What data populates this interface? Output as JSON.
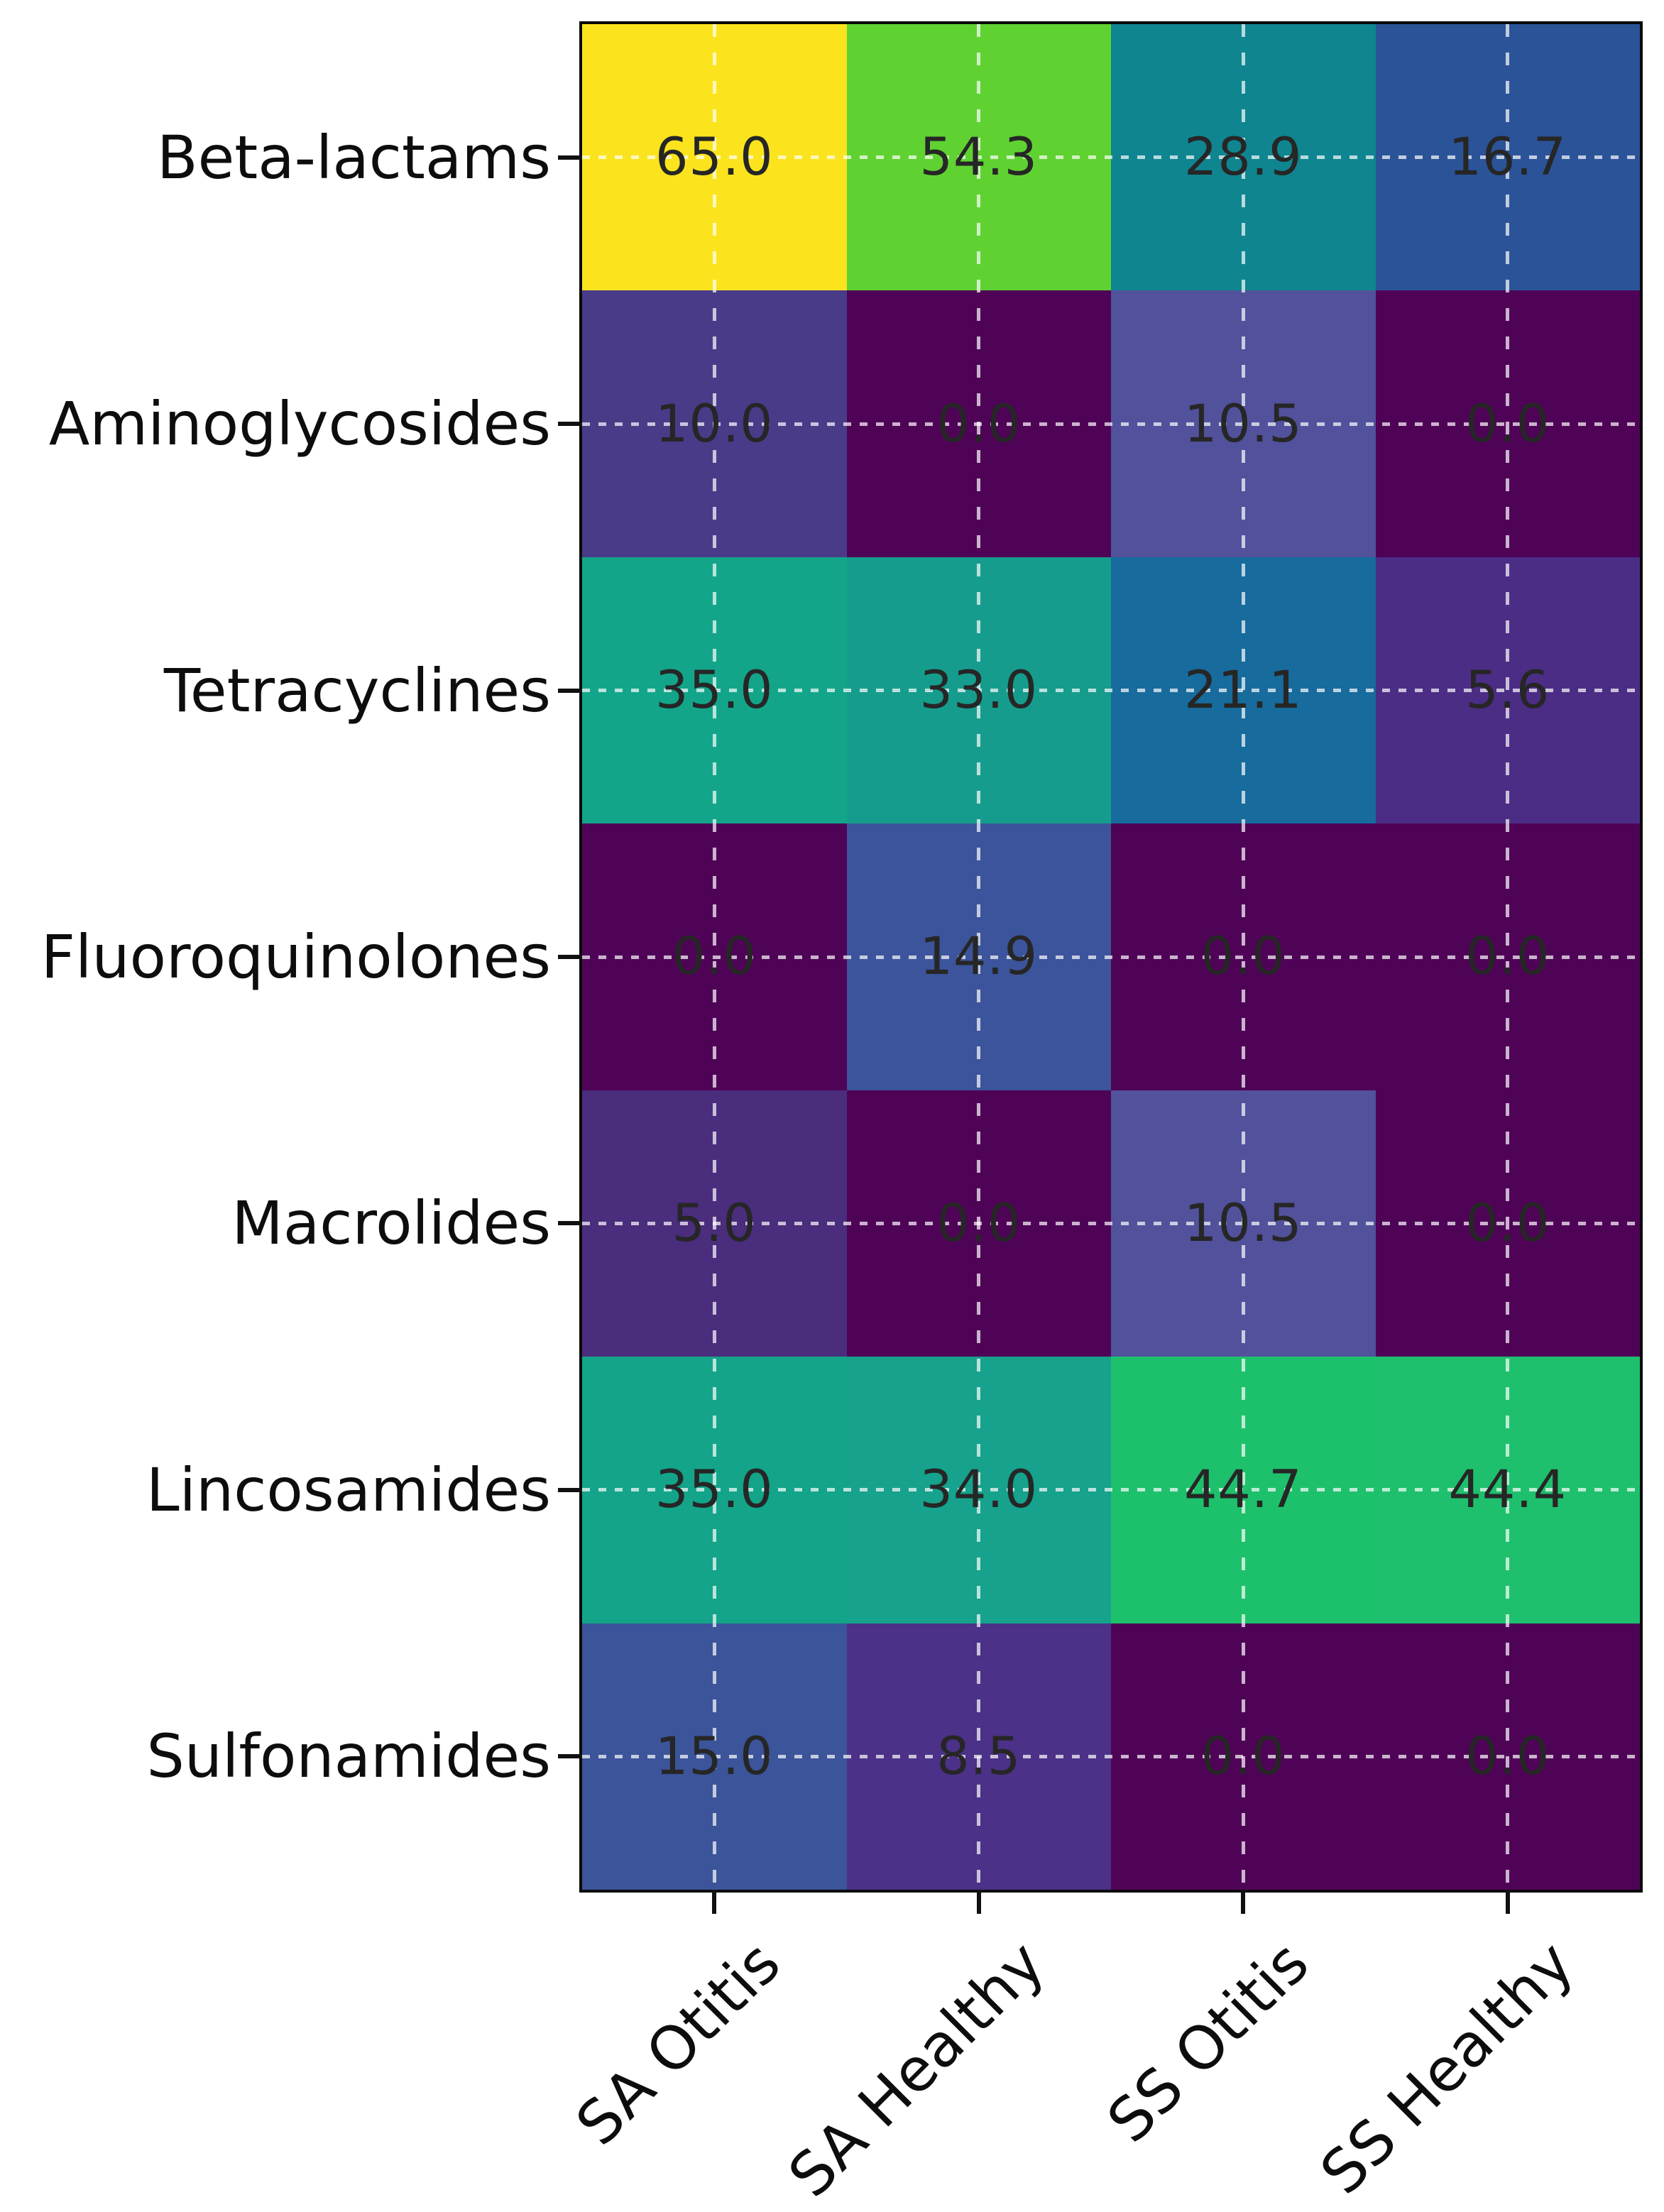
{
  "figure": {
    "background": "#ffffff",
    "title": ""
  },
  "chart_data": {
    "type": "heatmap",
    "title": "",
    "xlabel": "",
    "ylabel": "",
    "rows": [
      "Beta-lactams",
      "Aminoglycosides",
      "Tetracyclines",
      "Fluoroquinolones",
      "Macrolides",
      "Lincosamides",
      "Sulfonamides"
    ],
    "columns": [
      "SA Otitis",
      "SA Healthy",
      "SS Otitis",
      "SS Healthy"
    ],
    "values": [
      [
        65.0,
        54.3,
        28.9,
        16.7
      ],
      [
        10.0,
        0.0,
        10.5,
        0.0
      ],
      [
        35.0,
        33.0,
        21.1,
        5.6
      ],
      [
        0.0,
        14.9,
        0.0,
        0.0
      ],
      [
        5.0,
        0.0,
        10.5,
        0.0
      ],
      [
        35.0,
        34.0,
        44.7,
        44.4
      ],
      [
        15.0,
        8.5,
        0.0,
        0.0
      ]
    ],
    "value_labels": [
      [
        "65.0",
        "54.3",
        "28.9",
        "16.7"
      ],
      [
        "10.0",
        "0.0",
        "10.5",
        "0.0"
      ],
      [
        "35.0",
        "33.0",
        "21.1",
        "5.6"
      ],
      [
        "0.0",
        "14.9",
        "0.0",
        "0.0"
      ],
      [
        "5.0",
        "0.0",
        "10.5",
        "0.0"
      ],
      [
        "35.0",
        "34.0",
        "44.7",
        "44.4"
      ],
      [
        "15.0",
        "8.5",
        "0.0",
        "0.0"
      ]
    ],
    "cell_colors": [
      [
        "#fbe41e",
        "#5fd232",
        "#0f8590",
        "#2b5398"
      ],
      [
        "#4a3b89",
        "#4f0357",
        "#52519c",
        "#4f0357"
      ],
      [
        "#13a58a",
        "#169c8d",
        "#176b9d",
        "#4c2d85"
      ],
      [
        "#4f0357",
        "#3c549b",
        "#4f0357",
        "#4f0357"
      ],
      [
        "#4a2d7d",
        "#4f0357",
        "#52519c",
        "#4f0357"
      ],
      [
        "#13a489",
        "#16a28c",
        "#1dc16c",
        "#1ec06d"
      ],
      [
        "#3b549a",
        "#4b3187",
        "#4f0357",
        "#4f0357"
      ]
    ],
    "colormap": "viridis",
    "value_range": [
      0,
      65
    ],
    "annotation_color": "#262626",
    "grid": {
      "style": "dashed",
      "color": "rgba(255,255,255,0.70)",
      "position": "cell-centers"
    },
    "axis": {
      "spine_color": "#0a0a0a",
      "tick_color": "#111111",
      "label_color": "#0d0d0d",
      "x_label_rotation_deg": 45,
      "legend": "none"
    }
  }
}
